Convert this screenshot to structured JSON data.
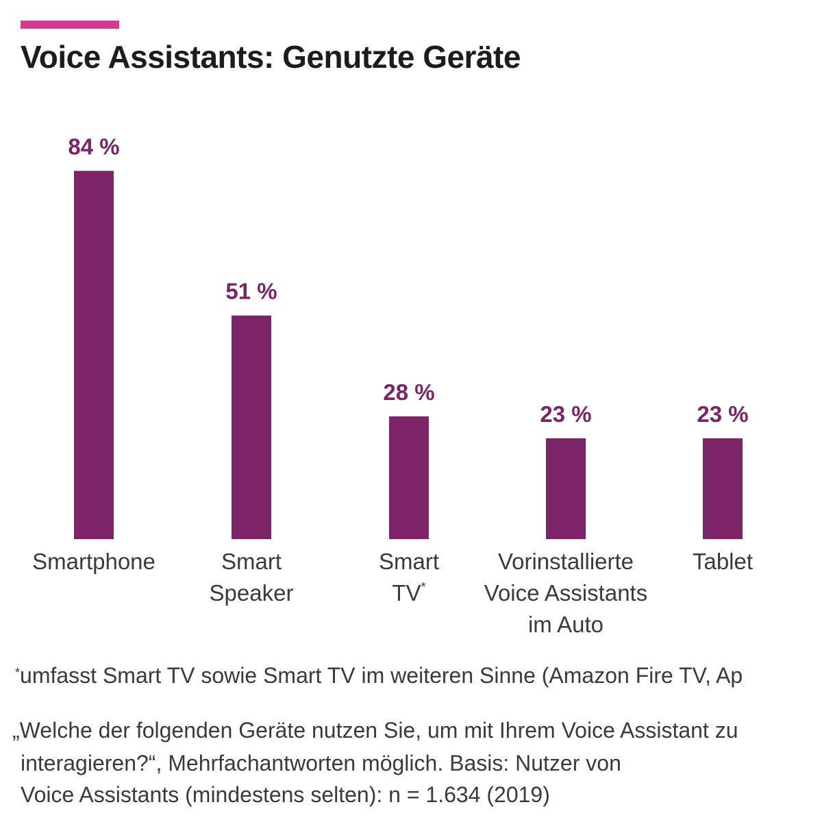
{
  "title": "Voice Assistants: Genutzte Geräte",
  "colors": {
    "accent": "#d63a8e",
    "bar": "#7b2468",
    "value_label": "#7b2468"
  },
  "chart_data": {
    "type": "bar",
    "title": "Voice Assistants: Genutzte Geräte",
    "xlabel": "",
    "ylabel": "",
    "ylim": [
      0,
      100
    ],
    "unit": "%",
    "grid": false,
    "categories": [
      "Smartphone",
      "Smart Speaker",
      "Smart TV*",
      "Vorinstallierte Voice Assistants im Auto",
      "Tablet"
    ],
    "category_lines": [
      [
        "Smartphone"
      ],
      [
        "Smart",
        "Speaker"
      ],
      [
        "Smart",
        "TV*"
      ],
      [
        "Vorinstallierte",
        "Voice Assistants",
        "im Auto"
      ],
      [
        "Tablet"
      ]
    ],
    "values": [
      84,
      51,
      28,
      23,
      23
    ],
    "value_labels": [
      "84 %",
      "51 %",
      "28 %",
      "23 %",
      "23 %"
    ]
  },
  "footnote": {
    "marker": "*",
    "text": "umfasst Smart TV sowie Smart TV im weiteren Sinne (Amazon Fire TV, Ap"
  },
  "question": "„Welche der folgenden Geräte nutzen Sie, um mit Ihrem Voice Assistant zu",
  "basis_line1": "interagieren?“, Mehrfachantworten möglich. Basis: Nutzer von",
  "basis_line2": "Voice Assistants (mindestens selten): n = 1.634 (2019)"
}
